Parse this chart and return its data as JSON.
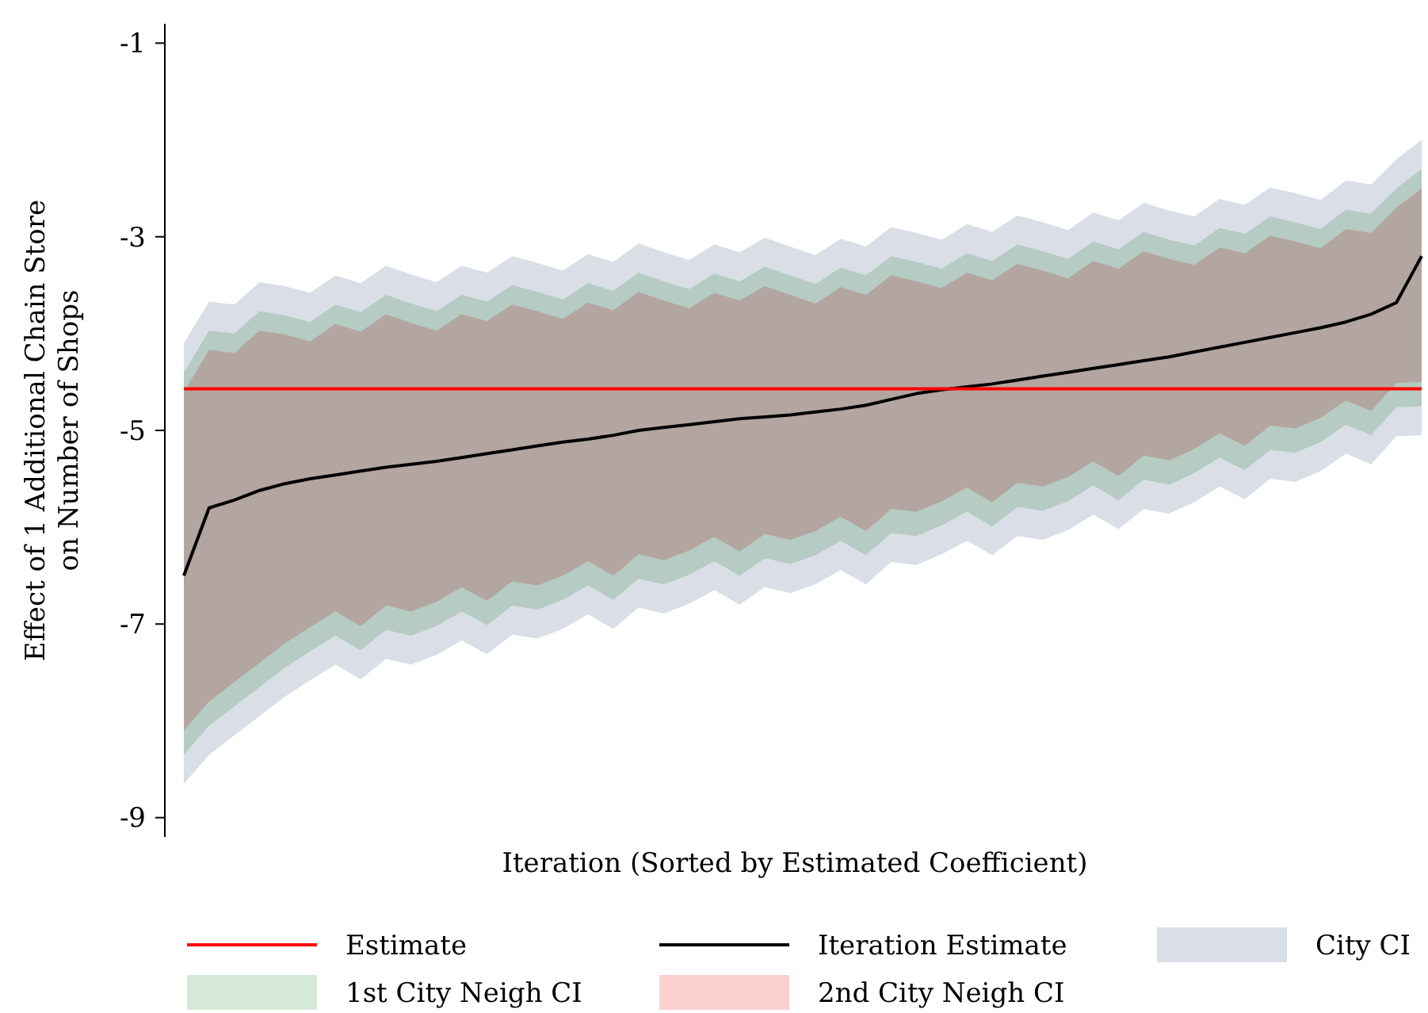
{
  "chart_data": {
    "type": "line",
    "xlabel": "Iteration (Sorted by Estimated Coefficient)",
    "ylabel": "Effect of 1 Additional Chain Store\non Number of Shops",
    "categories": [
      null,
      null,
      null,
      null,
      null,
      null,
      null,
      null,
      null,
      null,
      null,
      null,
      null,
      null,
      null,
      null,
      null,
      null,
      null,
      null,
      null,
      null,
      null,
      null,
      null,
      null,
      null,
      null,
      null,
      null,
      null,
      null,
      null,
      null,
      null,
      null,
      null,
      null,
      null,
      null,
      null,
      null,
      null,
      null,
      null,
      null,
      null,
      null,
      null,
      null
    ],
    "ylim": [
      -9.2,
      -0.8
    ],
    "yticks": [
      -9,
      -7,
      -5,
      -3,
      -1
    ],
    "grid": false,
    "legend": "bottom",
    "ref_lines": [
      {
        "axis": "y",
        "value": -4.57,
        "label": "Estimate",
        "color": "#ff0000"
      }
    ],
    "series": [
      {
        "name": "City CI",
        "type": "line",
        "color": "#d9dee7",
        "values": [
          null,
          null,
          null,
          null,
          null,
          null,
          null,
          null,
          null,
          null,
          null,
          null,
          null,
          null,
          null,
          null,
          null,
          null,
          null,
          null,
          null,
          null,
          null,
          null,
          null,
          null,
          null,
          null,
          null,
          null,
          null,
          null,
          null,
          null,
          null,
          null,
          null,
          null,
          null,
          null,
          null,
          null,
          null,
          null,
          null,
          null,
          null,
          null,
          null,
          null
        ],
        "upper": [
          -4.1,
          -3.67,
          -3.7,
          -3.47,
          -3.51,
          -3.58,
          -3.4,
          -3.48,
          -3.3,
          -3.39,
          -3.47,
          -3.3,
          -3.37,
          -3.2,
          -3.27,
          -3.35,
          -3.18,
          -3.26,
          -3.07,
          -3.16,
          -3.24,
          -3.08,
          -3.16,
          -3.01,
          -3.1,
          -3.19,
          -3.02,
          -3.1,
          -2.9,
          -2.96,
          -3.03,
          -2.87,
          -2.95,
          -2.78,
          -2.85,
          -2.93,
          -2.75,
          -2.83,
          -2.65,
          -2.73,
          -2.79,
          -2.61,
          -2.67,
          -2.49,
          -2.55,
          -2.62,
          -2.42,
          -2.46,
          -2.2,
          -2.0
        ],
        "lower": [
          -8.65,
          -8.35,
          -8.15,
          -7.95,
          -7.75,
          -7.58,
          -7.42,
          -7.57,
          -7.36,
          -7.42,
          -7.32,
          -7.17,
          -7.31,
          -7.11,
          -7.15,
          -7.05,
          -6.9,
          -7.05,
          -6.83,
          -6.89,
          -6.79,
          -6.65,
          -6.8,
          -6.62,
          -6.68,
          -6.59,
          -6.44,
          -6.59,
          -6.36,
          -6.39,
          -6.28,
          -6.14,
          -6.29,
          -6.09,
          -6.13,
          -6.03,
          -5.87,
          -6.02,
          -5.81,
          -5.86,
          -5.74,
          -5.58,
          -5.71,
          -5.5,
          -5.53,
          -5.42,
          -5.24,
          -5.35,
          -5.06,
          -5.05
        ]
      },
      {
        "name": "1st City Neigh CI",
        "type": "line",
        "color": "#d5e9d8",
        "values": [
          null,
          null,
          null,
          null,
          null,
          null,
          null,
          null,
          null,
          null,
          null,
          null,
          null,
          null,
          null,
          null,
          null,
          null,
          null,
          null,
          null,
          null,
          null,
          null,
          null,
          null,
          null,
          null,
          null,
          null,
          null,
          null,
          null,
          null,
          null,
          null,
          null,
          null,
          null,
          null,
          null,
          null,
          null,
          null,
          null,
          null,
          null,
          null,
          null,
          null
        ],
        "upper": [
          -4.4,
          -3.97,
          -4.0,
          -3.77,
          -3.81,
          -3.88,
          -3.7,
          -3.78,
          -3.6,
          -3.69,
          -3.77,
          -3.6,
          -3.67,
          -3.5,
          -3.57,
          -3.65,
          -3.48,
          -3.56,
          -3.37,
          -3.46,
          -3.54,
          -3.38,
          -3.46,
          -3.31,
          -3.4,
          -3.49,
          -3.32,
          -3.4,
          -3.2,
          -3.26,
          -3.33,
          -3.17,
          -3.25,
          -3.08,
          -3.15,
          -3.23,
          -3.05,
          -3.13,
          -2.95,
          -3.03,
          -3.09,
          -2.91,
          -2.97,
          -2.79,
          -2.85,
          -2.92,
          -2.72,
          -2.76,
          -2.5,
          -2.3
        ],
        "lower": [
          -8.35,
          -8.05,
          -7.85,
          -7.65,
          -7.45,
          -7.28,
          -7.12,
          -7.27,
          -7.06,
          -7.12,
          -7.02,
          -6.87,
          -7.01,
          -6.81,
          -6.85,
          -6.75,
          -6.6,
          -6.75,
          -6.53,
          -6.59,
          -6.49,
          -6.35,
          -6.5,
          -6.32,
          -6.38,
          -6.29,
          -6.14,
          -6.29,
          -6.06,
          -6.09,
          -5.98,
          -5.84,
          -5.99,
          -5.79,
          -5.83,
          -5.73,
          -5.57,
          -5.72,
          -5.51,
          -5.56,
          -5.44,
          -5.28,
          -5.41,
          -5.2,
          -5.23,
          -5.12,
          -4.94,
          -5.05,
          -4.76,
          -4.75
        ]
      },
      {
        "name": "2nd City Neigh CI",
        "type": "line",
        "color": "#fdd0d0",
        "values": [
          null,
          null,
          null,
          null,
          null,
          null,
          null,
          null,
          null,
          null,
          null,
          null,
          null,
          null,
          null,
          null,
          null,
          null,
          null,
          null,
          null,
          null,
          null,
          null,
          null,
          null,
          null,
          null,
          null,
          null,
          null,
          null,
          null,
          null,
          null,
          null,
          null,
          null,
          null,
          null,
          null,
          null,
          null,
          null,
          null,
          null,
          null,
          null,
          null,
          null
        ],
        "upper": [
          -4.6,
          -4.17,
          -4.2,
          -3.97,
          -4.01,
          -4.08,
          -3.9,
          -3.98,
          -3.8,
          -3.89,
          -3.97,
          -3.8,
          -3.87,
          -3.7,
          -3.77,
          -3.85,
          -3.68,
          -3.76,
          -3.57,
          -3.66,
          -3.74,
          -3.58,
          -3.66,
          -3.51,
          -3.6,
          -3.69,
          -3.52,
          -3.6,
          -3.4,
          -3.46,
          -3.53,
          -3.37,
          -3.45,
          -3.28,
          -3.35,
          -3.43,
          -3.25,
          -3.33,
          -3.15,
          -3.23,
          -3.29,
          -3.11,
          -3.17,
          -2.99,
          -3.05,
          -3.12,
          -2.92,
          -2.96,
          -2.7,
          -2.5
        ],
        "lower": [
          -8.1,
          -7.8,
          -7.6,
          -7.4,
          -7.2,
          -7.03,
          -6.87,
          -7.02,
          -6.81,
          -6.87,
          -6.77,
          -6.62,
          -6.76,
          -6.56,
          -6.6,
          -6.5,
          -6.35,
          -6.5,
          -6.28,
          -6.34,
          -6.24,
          -6.1,
          -6.25,
          -6.07,
          -6.13,
          -6.04,
          -5.89,
          -6.04,
          -5.81,
          -5.84,
          -5.73,
          -5.59,
          -5.74,
          -5.54,
          -5.58,
          -5.48,
          -5.32,
          -5.47,
          -5.26,
          -5.31,
          -5.19,
          -5.03,
          -5.16,
          -4.95,
          -4.98,
          -4.87,
          -4.69,
          -4.8,
          -4.51,
          -4.5
        ]
      },
      {
        "name": "Iteration Estimate",
        "type": "line",
        "color": "#000000",
        "values": [
          -6.5,
          -5.8,
          -5.72,
          -5.62,
          -5.55,
          -5.5,
          -5.46,
          -5.42,
          -5.38,
          -5.35,
          -5.32,
          -5.28,
          -5.24,
          -5.2,
          -5.16,
          -5.12,
          -5.09,
          -5.05,
          -5.0,
          -4.97,
          -4.94,
          -4.91,
          -4.88,
          -4.86,
          -4.84,
          -4.81,
          -4.78,
          -4.74,
          -4.68,
          -4.62,
          -4.58,
          -4.55,
          -4.52,
          -4.48,
          -4.44,
          -4.4,
          -4.36,
          -4.32,
          -4.28,
          -4.24,
          -4.19,
          -4.14,
          -4.09,
          -4.04,
          -3.99,
          -3.94,
          -3.88,
          -3.8,
          -3.68,
          -3.2
        ]
      }
    ]
  }
}
